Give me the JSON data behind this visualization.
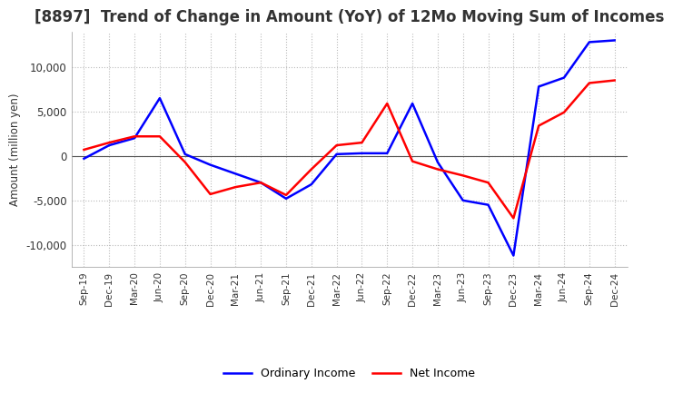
{
  "title": "[8897]  Trend of Change in Amount (YoY) of 12Mo Moving Sum of Incomes",
  "ylabel": "Amount (million yen)",
  "ylim": [
    -12500,
    14000
  ],
  "yticks": [
    -10000,
    -5000,
    0,
    5000,
    10000
  ],
  "x_labels": [
    "Sep-19",
    "Dec-19",
    "Mar-20",
    "Jun-20",
    "Sep-20",
    "Dec-20",
    "Mar-21",
    "Jun-21",
    "Sep-21",
    "Dec-21",
    "Mar-22",
    "Jun-22",
    "Sep-22",
    "Dec-22",
    "Mar-23",
    "Jun-23",
    "Sep-23",
    "Dec-23",
    "Mar-24",
    "Jun-24",
    "Sep-24",
    "Dec-24"
  ],
  "ordinary_income": [
    -300,
    1200,
    2000,
    6500,
    200,
    -1000,
    -2000,
    -3000,
    -4800,
    -3200,
    200,
    300,
    300,
    5900,
    -700,
    -5000,
    -5500,
    -11200,
    7800,
    8800,
    12800,
    13000
  ],
  "net_income": [
    700,
    1500,
    2200,
    2200,
    -700,
    -4300,
    -3500,
    -3000,
    -4400,
    -1500,
    1200,
    1500,
    5900,
    -600,
    -1500,
    -2200,
    -3000,
    -7000,
    3400,
    4900,
    8200,
    8500
  ],
  "ordinary_color": "#0000ff",
  "net_color": "#ff0000",
  "line_width": 1.8,
  "background_color": "#ffffff",
  "grid_color": "#bbbbbb",
  "title_fontsize": 12,
  "legend_labels": [
    "Ordinary Income",
    "Net Income"
  ]
}
